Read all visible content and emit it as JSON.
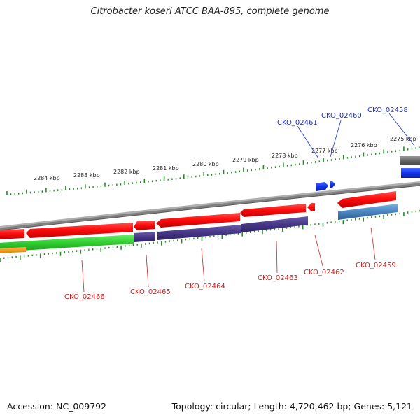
{
  "title": "Citrobacter koseri ATCC BAA-895, complete genome",
  "accession": "Accession: NC_009792",
  "topology": "Topology: circular; Length: 4,720,462 bp; Genes: 5,121",
  "colors": {
    "gene_forward": "#2244ee",
    "gene_reverse": "#dd2222",
    "cds_red": "#ff1a1a",
    "cds_purple": "#4a3a8a",
    "cds_green": "#33cc33",
    "cds_steelblue": "#4a86c0",
    "orange": "#ff9900",
    "backbone": "#888888",
    "ticks": "#2a8a2a"
  },
  "kbp_labels": [
    "2275 kbp",
    "2276 kbp",
    "2277 kbp",
    "2278 kbp",
    "2279 kbp",
    "2280 kbp",
    "2281 kbp",
    "2282 kbp",
    "2283 kbp",
    "2284 kbp"
  ],
  "forward_labels": [
    "CKO_02461",
    "CKO_02460",
    "CKO_02458"
  ],
  "reverse_labels": [
    "CKO_02466",
    "CKO_02465",
    "CKO_02464",
    "CKO_02463",
    "CKO_02462",
    "CKO_02459"
  ]
}
